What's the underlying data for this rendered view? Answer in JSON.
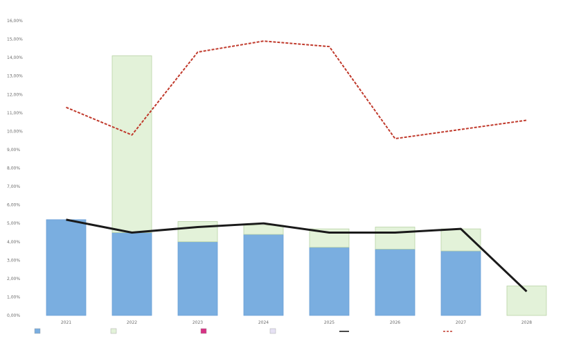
{
  "chart_data": {
    "type": "bar",
    "categories": [
      "2021",
      "2022",
      "2023",
      "2024",
      "2025",
      "2026",
      "2027",
      "2028"
    ],
    "y_ticks": [
      "0,00%",
      "1,00%",
      "2,00%",
      "3,00%",
      "4,00%",
      "5,00%",
      "6,00%",
      "7,00%",
      "8,00%",
      "9,00%",
      "10,00%",
      "11,00%",
      "12,00%",
      "13,00%",
      "14,00%",
      "15,00%",
      "16,00%"
    ],
    "ylim": [
      0,
      16
    ],
    "grid": false,
    "legend_position": "bottom",
    "series": [
      {
        "name": "",
        "kind": "bar",
        "stack": "s",
        "color": "#7aaee0",
        "values": [
          5.2,
          4.5,
          4.0,
          4.4,
          3.7,
          3.6,
          3.5,
          0.0
        ]
      },
      {
        "name": "",
        "kind": "bar",
        "stack": "s",
        "color": "#e3f2d9",
        "values": [
          0.0,
          9.6,
          1.1,
          0.5,
          1.0,
          1.2,
          1.2,
          1.6
        ]
      },
      {
        "name": "",
        "kind": "bar",
        "stack": "s",
        "color": "#d63384",
        "values": [
          0,
          0,
          0,
          0,
          0,
          0,
          0,
          0
        ]
      },
      {
        "name": "",
        "kind": "bar",
        "stack": "s",
        "color": "#e6e2f4",
        "values": [
          0,
          0,
          0,
          0,
          0,
          0,
          0,
          0
        ]
      },
      {
        "name": "",
        "kind": "line",
        "color": "#1a1a1a",
        "dashed": false,
        "values": [
          5.2,
          4.5,
          4.8,
          5.0,
          4.5,
          4.5,
          4.7,
          1.3
        ]
      },
      {
        "name": "",
        "kind": "line",
        "color": "#c0392b",
        "dashed": true,
        "values": [
          11.3,
          9.8,
          14.3,
          14.9,
          14.6,
          9.6,
          10.1,
          10.6
        ]
      }
    ]
  }
}
